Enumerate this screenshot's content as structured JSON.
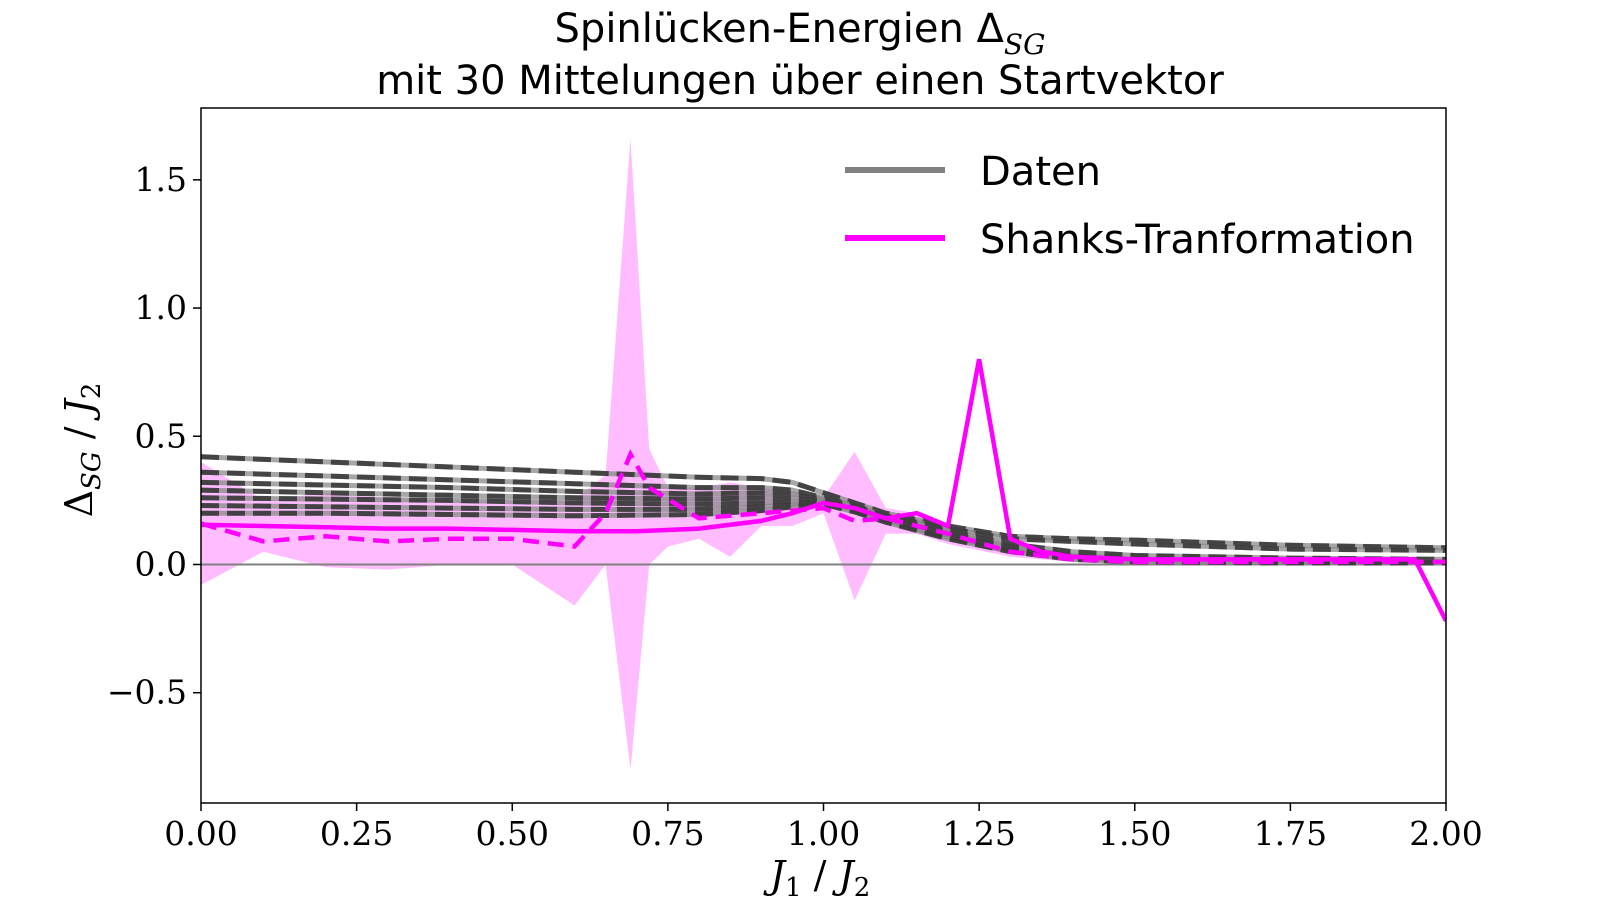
{
  "chart_data": {
    "type": "line",
    "title_line1": "Spinlücken-Energien Δ",
    "title_line1_sub": "SG",
    "title_line2": "mit 30 Mittelungen über einen Startvektor",
    "xlabel_main_a": "J",
    "xlabel_sub_a": "1",
    "xlabel_sep": " / ",
    "xlabel_main_b": "J",
    "xlabel_sub_b": "2",
    "ylabel_main_a": "Δ",
    "ylabel_sub_a": "SG",
    "ylabel_sep": " / ",
    "ylabel_main_b": "J",
    "ylabel_sub_b": "2",
    "xlim": [
      0.0,
      2.0
    ],
    "ylim": [
      -0.93,
      1.78
    ],
    "xticks": [
      0.0,
      0.25,
      0.5,
      0.75,
      1.0,
      1.25,
      1.5,
      1.75,
      2.0
    ],
    "xtick_labels": [
      "0.00",
      "0.25",
      "0.50",
      "0.75",
      "1.00",
      "1.25",
      "1.50",
      "1.75",
      "2.00"
    ],
    "yticks": [
      -0.5,
      0.0,
      0.5,
      1.0,
      1.5
    ],
    "ytick_labels": [
      "−0.5",
      "0.0",
      "0.5",
      "1.0",
      "1.5"
    ],
    "hline_y": 0.0,
    "grid": false,
    "legend_position": "top-right",
    "legend": [
      {
        "label": "Daten",
        "color": "#808080"
      },
      {
        "label": "Shanks-Tranformation",
        "color": "#ff00ff"
      }
    ],
    "daten_series": [
      {
        "x": [
          0.0,
          0.2,
          0.4,
          0.6,
          0.8,
          0.9,
          0.95,
          1.0,
          1.05,
          1.1,
          1.2,
          1.3,
          1.4,
          1.5,
          1.75,
          2.0
        ],
        "y": [
          0.42,
          0.4,
          0.38,
          0.36,
          0.34,
          0.335,
          0.32,
          0.28,
          0.24,
          0.2,
          0.15,
          0.11,
          0.1,
          0.095,
          0.075,
          0.065
        ]
      },
      {
        "x": [
          0.0,
          0.2,
          0.4,
          0.6,
          0.8,
          0.9,
          0.95,
          1.0,
          1.05,
          1.1,
          1.2,
          1.3,
          1.4,
          1.5,
          1.75,
          2.0
        ],
        "y": [
          0.36,
          0.345,
          0.33,
          0.315,
          0.3,
          0.3,
          0.29,
          0.26,
          0.23,
          0.19,
          0.14,
          0.1,
          0.09,
          0.08,
          0.06,
          0.055
        ]
      },
      {
        "x": [
          0.0,
          0.2,
          0.4,
          0.6,
          0.8,
          0.9,
          0.95,
          1.0,
          1.05,
          1.1,
          1.2,
          1.3,
          1.4,
          1.5,
          1.75,
          2.0
        ],
        "y": [
          0.32,
          0.31,
          0.3,
          0.285,
          0.275,
          0.28,
          0.275,
          0.255,
          0.225,
          0.185,
          0.13,
          0.08,
          0.05,
          0.035,
          0.025,
          0.02
        ]
      },
      {
        "x": [
          0.0,
          0.2,
          0.4,
          0.6,
          0.8,
          0.9,
          0.95,
          1.0,
          1.05,
          1.1,
          1.2,
          1.3,
          1.4,
          1.5,
          1.75,
          2.0
        ],
        "y": [
          0.29,
          0.28,
          0.27,
          0.26,
          0.255,
          0.26,
          0.26,
          0.25,
          0.22,
          0.18,
          0.12,
          0.07,
          0.035,
          0.02,
          0.015,
          0.01
        ]
      },
      {
        "x": [
          0.0,
          0.2,
          0.4,
          0.6,
          0.8,
          0.9,
          0.95,
          1.0,
          1.05,
          1.1,
          1.2,
          1.3,
          1.4,
          1.5,
          1.75,
          2.0
        ],
        "y": [
          0.26,
          0.255,
          0.25,
          0.24,
          0.235,
          0.24,
          0.245,
          0.245,
          0.215,
          0.175,
          0.11,
          0.06,
          0.03,
          0.015,
          0.01,
          0.01
        ]
      },
      {
        "x": [
          0.0,
          0.2,
          0.4,
          0.6,
          0.8,
          0.9,
          0.95,
          1.0,
          1.05,
          1.1,
          1.2,
          1.3,
          1.4,
          1.5,
          1.75,
          2.0
        ],
        "y": [
          0.23,
          0.225,
          0.22,
          0.215,
          0.215,
          0.225,
          0.235,
          0.24,
          0.21,
          0.17,
          0.105,
          0.055,
          0.025,
          0.012,
          0.008,
          0.008
        ]
      },
      {
        "x": [
          0.0,
          0.2,
          0.4,
          0.6,
          0.8,
          0.9,
          0.95,
          1.0,
          1.05,
          1.1,
          1.2,
          1.3,
          1.4,
          1.5,
          1.75,
          2.0
        ],
        "y": [
          0.2,
          0.2,
          0.195,
          0.19,
          0.195,
          0.21,
          0.225,
          0.235,
          0.205,
          0.165,
          0.1,
          0.05,
          0.02,
          0.01,
          0.006,
          0.006
        ]
      }
    ],
    "shanks_solid": {
      "x": [
        0.0,
        0.1,
        0.2,
        0.3,
        0.4,
        0.5,
        0.6,
        0.7,
        0.8,
        0.9,
        0.95,
        1.0,
        1.05,
        1.1,
        1.15,
        1.2,
        1.25,
        1.3,
        1.35,
        1.4,
        1.5,
        1.6,
        1.7,
        1.8,
        1.9,
        1.95,
        2.0
      ],
      "y": [
        0.155,
        0.15,
        0.145,
        0.14,
        0.14,
        0.135,
        0.13,
        0.13,
        0.14,
        0.17,
        0.2,
        0.24,
        0.22,
        0.18,
        0.2,
        0.15,
        0.8,
        0.1,
        0.05,
        0.03,
        0.02,
        0.02,
        0.02,
        0.02,
        0.02,
        0.02,
        -0.22
      ]
    },
    "shanks_dashed": {
      "x": [
        0.0,
        0.1,
        0.2,
        0.3,
        0.4,
        0.5,
        0.6,
        0.65,
        0.69,
        0.72,
        0.8,
        0.9,
        1.0,
        1.05,
        1.1,
        1.2,
        1.3,
        1.4,
        1.5,
        1.75,
        2.0
      ],
      "y": [
        0.16,
        0.09,
        0.11,
        0.09,
        0.1,
        0.1,
        0.07,
        0.2,
        0.43,
        0.3,
        0.18,
        0.2,
        0.22,
        0.17,
        0.18,
        0.12,
        0.05,
        0.02,
        0.01,
        0.01,
        0.01
      ]
    },
    "shanks_band": {
      "x": [
        0.0,
        0.1,
        0.2,
        0.3,
        0.4,
        0.5,
        0.6,
        0.65,
        0.69,
        0.72,
        0.75,
        0.8,
        0.85,
        0.9,
        0.95,
        1.0,
        1.05,
        1.1,
        1.15,
        1.2,
        1.3,
        1.4,
        1.5,
        1.75,
        2.0
      ],
      "upper": [
        0.4,
        0.25,
        0.28,
        0.26,
        0.25,
        0.25,
        0.25,
        0.35,
        1.66,
        0.45,
        0.3,
        0.3,
        0.32,
        0.3,
        0.28,
        0.26,
        0.44,
        0.22,
        0.2,
        0.15,
        0.08,
        0.04,
        0.03,
        0.03,
        0.02
      ],
      "lower": [
        -0.08,
        0.05,
        -0.01,
        -0.02,
        0.0,
        0.0,
        -0.16,
        0.0,
        -0.8,
        0.0,
        0.07,
        0.1,
        0.03,
        0.15,
        0.15,
        0.2,
        -0.14,
        0.12,
        0.12,
        0.08,
        0.03,
        0.01,
        0.005,
        0.005,
        0.0
      ]
    },
    "colors": {
      "daten": "#333333",
      "shanks": "#ff00ff",
      "band": "#ff99ff",
      "hline": "#808080",
      "axes": "#000000"
    }
  }
}
